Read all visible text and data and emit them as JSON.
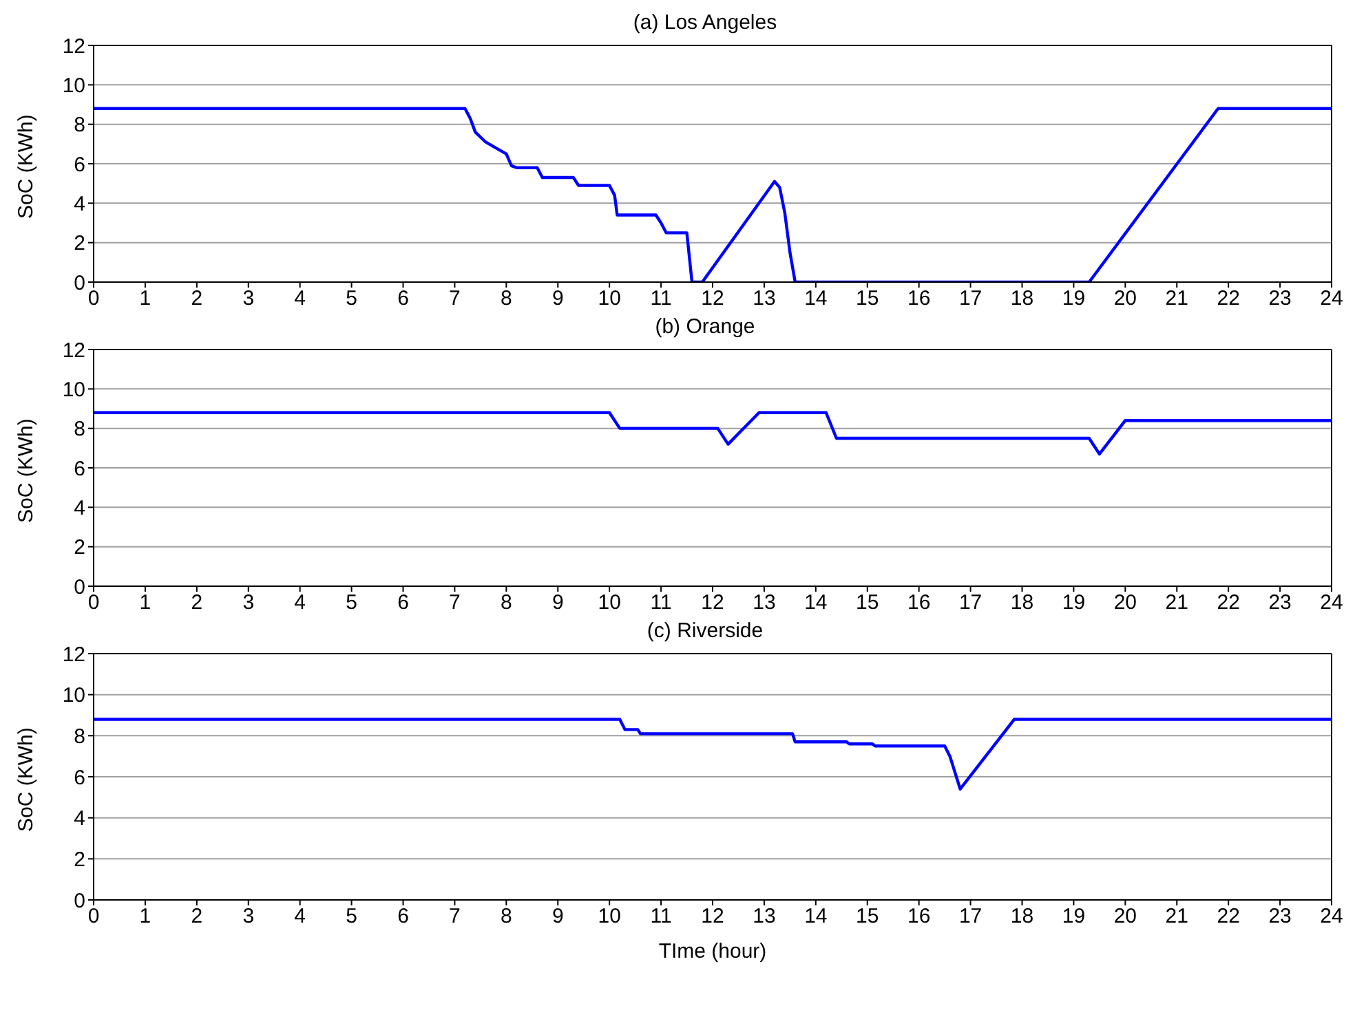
{
  "chart_data": [
    {
      "type": "line",
      "title": "(a) Los Angeles",
      "ylabel": "SoC (KWh)",
      "xlim": [
        0,
        24
      ],
      "xticks": [
        0,
        1,
        2,
        3,
        4,
        5,
        6,
        7,
        8,
        9,
        10,
        11,
        12,
        13,
        14,
        15,
        16,
        17,
        18,
        19,
        20,
        21,
        22,
        23,
        24
      ],
      "ylim": [
        0,
        12
      ],
      "yticks": [
        0,
        2,
        4,
        6,
        8,
        10,
        12
      ],
      "grid": "y",
      "legend": false,
      "line_style": "solid",
      "marker": "none",
      "series": [
        {
          "color": "#0000ff",
          "x": [
            0,
            7.2,
            7.3,
            7.4,
            7.6,
            7.8,
            8.0,
            8.1,
            8.2,
            8.6,
            8.7,
            9.3,
            9.4,
            10.0,
            10.1,
            10.15,
            10.9,
            11.0,
            11.1,
            11.5,
            11.6,
            11.8,
            13.2,
            13.3,
            13.4,
            13.5,
            13.6,
            19.3,
            21.8,
            24
          ],
          "values": [
            8.8,
            8.8,
            8.3,
            7.6,
            7.1,
            6.8,
            6.5,
            5.9,
            5.8,
            5.8,
            5.3,
            5.3,
            4.9,
            4.9,
            4.4,
            3.4,
            3.4,
            3.0,
            2.5,
            2.5,
            0,
            0,
            5.1,
            4.8,
            3.5,
            1.5,
            0,
            0,
            8.8,
            8.8
          ]
        }
      ]
    },
    {
      "type": "line",
      "title": "(b) Orange",
      "ylabel": "SoC (KWh)",
      "xlim": [
        0,
        24
      ],
      "xticks": [
        0,
        1,
        2,
        3,
        4,
        5,
        6,
        7,
        8,
        9,
        10,
        11,
        12,
        13,
        14,
        15,
        16,
        17,
        18,
        19,
        20,
        21,
        22,
        23,
        24
      ],
      "ylim": [
        0,
        12
      ],
      "yticks": [
        0,
        2,
        4,
        6,
        8,
        10,
        12
      ],
      "grid": "y",
      "legend": false,
      "line_style": "solid",
      "marker": "none",
      "series": [
        {
          "color": "#0000ff",
          "x": [
            0,
            10.0,
            10.2,
            12.1,
            12.3,
            12.9,
            14.2,
            14.4,
            19.3,
            19.5,
            20.0,
            24
          ],
          "values": [
            8.8,
            8.8,
            8.0,
            8.0,
            7.2,
            8.8,
            8.8,
            7.5,
            7.5,
            6.7,
            8.4,
            8.4
          ]
        }
      ]
    },
    {
      "type": "line",
      "title": "(c) Riverside",
      "xlabel": "TIme (hour)",
      "ylabel": "SoC (KWh)",
      "xlim": [
        0,
        24
      ],
      "xticks": [
        0,
        1,
        2,
        3,
        4,
        5,
        6,
        7,
        8,
        9,
        10,
        11,
        12,
        13,
        14,
        15,
        16,
        17,
        18,
        19,
        20,
        21,
        22,
        23,
        24
      ],
      "ylim": [
        0,
        12
      ],
      "yticks": [
        0,
        2,
        4,
        6,
        8,
        10,
        12
      ],
      "grid": "y",
      "legend": false,
      "line_style": "solid",
      "marker": "none",
      "series": [
        {
          "color": "#0000ff",
          "x": [
            0,
            10.2,
            10.3,
            10.55,
            10.6,
            13.55,
            13.6,
            14.6,
            14.65,
            15.1,
            15.15,
            16.5,
            16.6,
            16.8,
            17.85,
            24
          ],
          "values": [
            8.8,
            8.8,
            8.3,
            8.3,
            8.1,
            8.1,
            7.7,
            7.7,
            7.6,
            7.6,
            7.5,
            7.5,
            7.0,
            5.4,
            8.8,
            8.8
          ]
        }
      ]
    }
  ]
}
